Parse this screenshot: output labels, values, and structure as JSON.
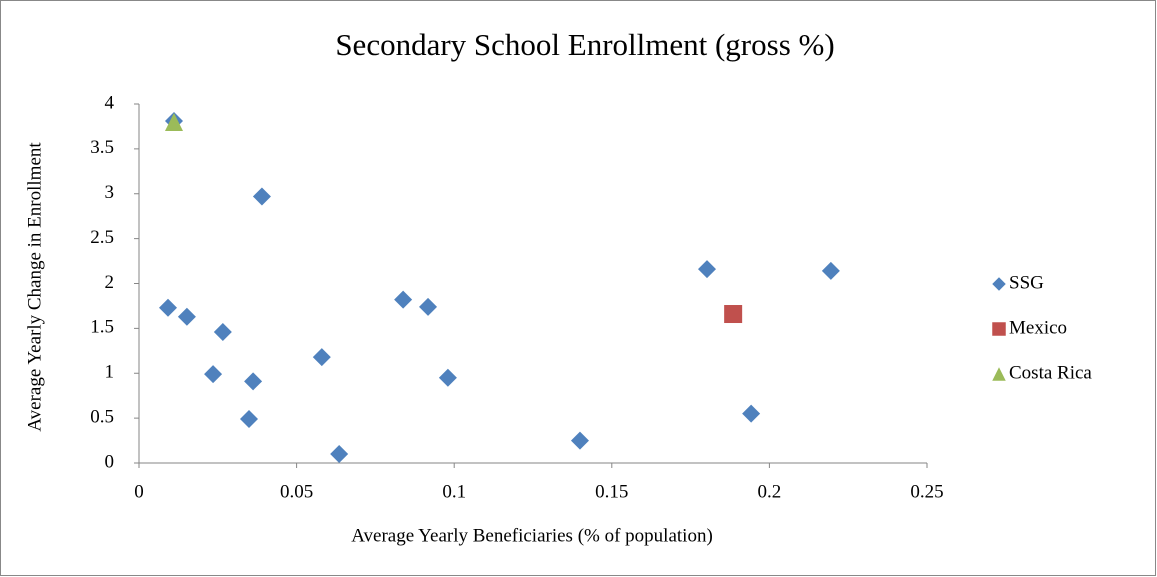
{
  "chart_data": {
    "type": "scatter",
    "title": "Secondary School Enrollment (gross %)",
    "x_label": "Average Yearly Beneficiaries (% of population)",
    "y_label": "Average Yearly Change in Enrollment",
    "xlim": [
      0,
      0.25
    ],
    "xticks": [
      0,
      0.05,
      0.1,
      0.15,
      0.2,
      0.25
    ],
    "ylim": [
      0,
      4
    ],
    "yticks": [
      0,
      0.5,
      1,
      1.5,
      2,
      2.5,
      3,
      3.5,
      4
    ],
    "grid": false,
    "legend": "right",
    "series": [
      {
        "name": "SSG",
        "color": "#4f81bd",
        "marker": "diamond",
        "x": [
          0.0111,
          0.039,
          0.0092,
          0.0152,
          0.0266,
          0.0235,
          0.0362,
          0.0349,
          0.058,
          0.0635,
          0.0838,
          0.0917,
          0.098,
          0.1399,
          0.1802,
          0.1942,
          0.2195
        ],
        "values": [
          3.81,
          2.97,
          1.73,
          1.63,
          1.46,
          0.99,
          0.91,
          0.49,
          1.18,
          0.1,
          1.82,
          1.74,
          0.95,
          0.25,
          2.16,
          0.55,
          2.14
        ]
      },
      {
        "name": "Mexico",
        "color": "#c0504d",
        "marker": "square",
        "x": [
          0.1885
        ],
        "values": [
          1.66
        ]
      },
      {
        "name": "Costa Rica",
        "color": "#9bbb59",
        "marker": "triangle",
        "x": [
          0.0111
        ],
        "values": [
          3.8
        ]
      }
    ]
  }
}
